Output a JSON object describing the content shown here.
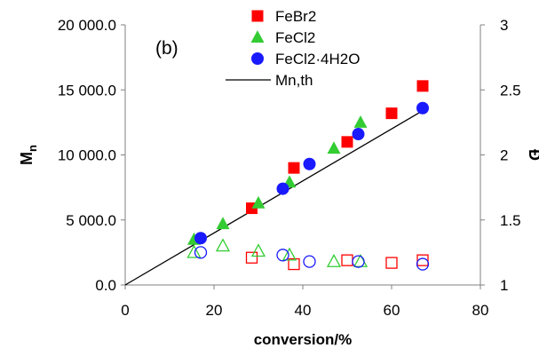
{
  "colors": {
    "axis": "#808080",
    "red": "#ff0000",
    "green": "#33cc33",
    "blue": "#1a1aff",
    "line": "#000000"
  },
  "chart_data": {
    "type": "scatter",
    "panel_label": "(b)",
    "xlabel": "conversion/%",
    "ylabel_main": "M",
    "ylabel_sub": "n",
    "y2label": "Đ",
    "xlim": [
      0,
      80
    ],
    "ylim": [
      0,
      20000
    ],
    "y2lim": [
      1,
      3
    ],
    "x_ticks": [
      0,
      20,
      40,
      60,
      80
    ],
    "x_tick_labels": [
      "0",
      "20",
      "40",
      "60",
      "80"
    ],
    "y_ticks": [
      0,
      5000,
      10000,
      15000,
      20000
    ],
    "y_tick_labels": [
      "0.0",
      "5 000.0",
      "10 000.0",
      "15 000.0",
      "20 000.0"
    ],
    "y2_ticks": [
      1,
      1.5,
      2,
      2.5,
      3
    ],
    "y2_tick_labels": [
      "1",
      "1.5",
      "2",
      "2.5",
      "3"
    ],
    "grid": false,
    "legend_position": "top-center",
    "series": [
      {
        "name": "FeBr2",
        "marker": "square",
        "color": "red",
        "mn": {
          "x": [
            28.5,
            38,
            50,
            60,
            67
          ],
          "y": [
            5900,
            9000,
            11000,
            13200,
            15300
          ]
        },
        "dispersity": {
          "x": [
            28.5,
            38,
            50,
            60,
            67
          ],
          "y": [
            1.21,
            1.16,
            1.19,
            1.17,
            1.19
          ]
        }
      },
      {
        "name": "FeCl2",
        "marker": "triangle",
        "color": "green",
        "mn": {
          "x": [
            15.5,
            22,
            30,
            37,
            47,
            53
          ],
          "y": [
            3500,
            4700,
            6300,
            7900,
            10500,
            12500
          ]
        },
        "dispersity": {
          "x": [
            15.5,
            22,
            30,
            37,
            47,
            53
          ],
          "y": [
            1.25,
            1.3,
            1.26,
            1.23,
            1.18,
            1.18
          ]
        }
      },
      {
        "name": "FeCl2·4H2O",
        "marker": "circle",
        "color": "blue",
        "mn": {
          "x": [
            17,
            35.5,
            41.5,
            52.5,
            67
          ],
          "y": [
            3600,
            7400,
            9300,
            11600,
            13600
          ]
        },
        "dispersity": {
          "x": [
            17,
            35.5,
            41.5,
            52.5,
            67
          ],
          "y": [
            1.25,
            1.23,
            1.18,
            1.18,
            1.16
          ]
        }
      }
    ],
    "line": {
      "name": "Mn,th",
      "x": [
        0,
        67
      ],
      "y": [
        0,
        13400
      ]
    }
  }
}
